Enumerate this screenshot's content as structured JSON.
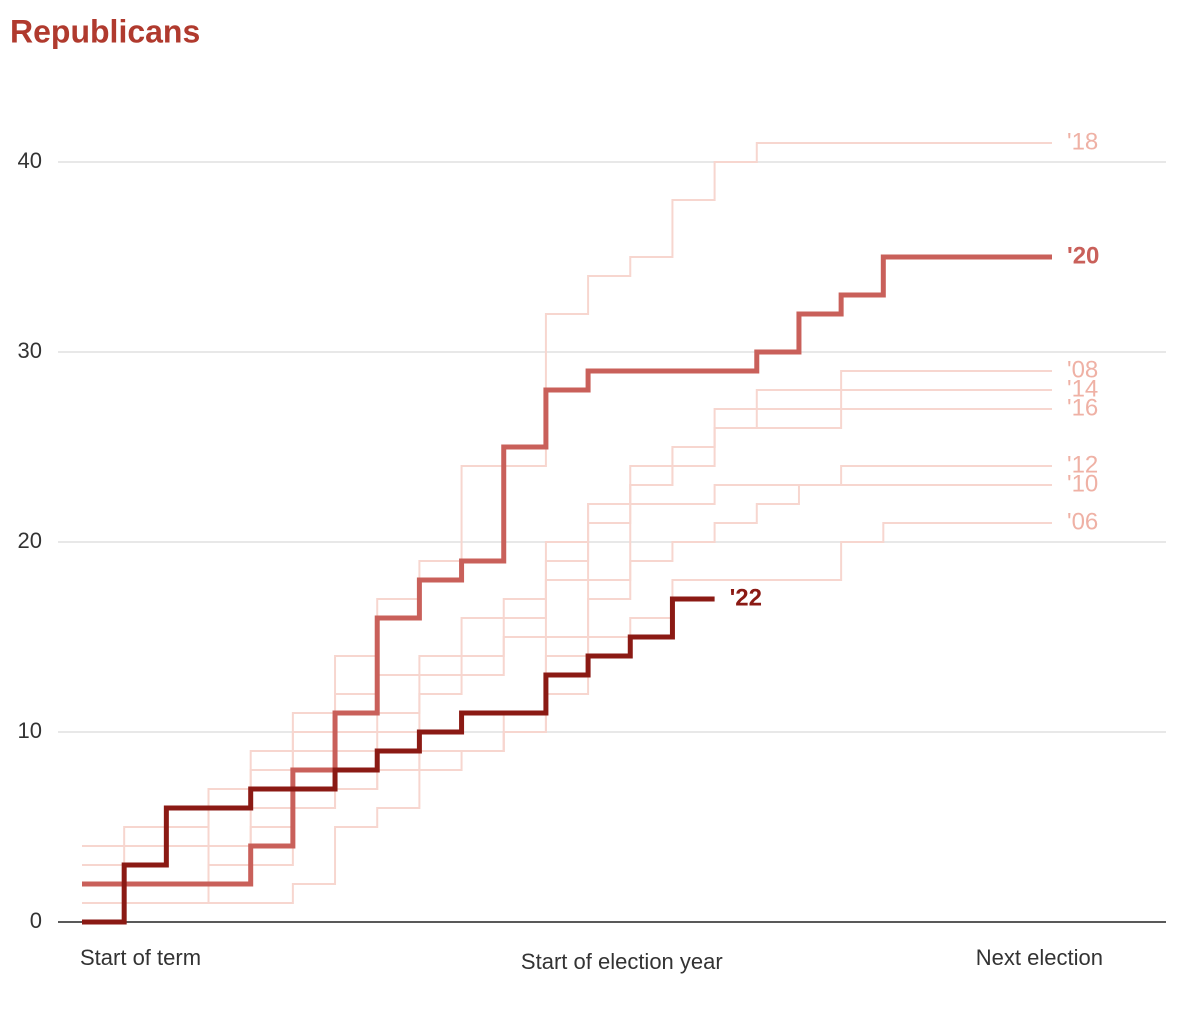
{
  "chart_data": {
    "type": "step",
    "title": "Republicans",
    "x": [
      0,
      1,
      2,
      3,
      4,
      5,
      6,
      7,
      8,
      9,
      10,
      11,
      12,
      13,
      14,
      15,
      16,
      17,
      18,
      19,
      20,
      21,
      22
    ],
    "xlim": [
      0,
      23
    ],
    "xticks": [
      {
        "value": 0,
        "label": "Start of term"
      },
      {
        "value": 12.8,
        "label": "Start of election year"
      },
      {
        "value": 22.7,
        "label": "Next election"
      }
    ],
    "ylim": [
      0,
      43
    ],
    "yticks": [
      0,
      10,
      20,
      30,
      40
    ],
    "grid": true,
    "series": [
      {
        "name": "'18",
        "color": "#f7d6cf",
        "label_color": "#efb1a5",
        "highlight": false,
        "values": [
          3,
          5,
          5,
          7,
          9,
          11,
          14,
          17,
          19,
          24,
          24,
          32,
          34,
          35,
          38,
          40,
          41,
          41,
          41,
          41,
          41,
          41,
          41
        ]
      },
      {
        "name": "'08",
        "color": "#f7d6cf",
        "label_color": "#efb1a5",
        "highlight": false,
        "values": [
          1,
          2,
          2,
          4,
          6,
          8,
          9,
          10,
          12,
          13,
          15,
          19,
          22,
          23,
          25,
          26,
          26,
          26,
          29,
          29,
          29,
          29,
          29
        ]
      },
      {
        "name": "'14",
        "color": "#f7d6cf",
        "label_color": "#efb1a5",
        "highlight": false,
        "values": [
          2,
          3,
          5,
          7,
          8,
          10,
          12,
          13,
          14,
          16,
          17,
          20,
          21,
          24,
          25,
          27,
          28,
          28,
          28,
          28,
          28,
          28,
          28
        ]
      },
      {
        "name": "'16",
        "color": "#f7d6cf",
        "label_color": "#efb1a5",
        "highlight": false,
        "values": [
          4,
          4,
          4,
          6,
          7,
          9,
          10,
          11,
          13,
          14,
          16,
          18,
          22,
          23,
          24,
          26,
          27,
          27,
          27,
          27,
          27,
          27,
          27
        ]
      },
      {
        "name": "'12",
        "color": "#f7d6cf",
        "label_color": "#efb1a5",
        "highlight": false,
        "values": [
          0,
          1,
          1,
          2,
          3,
          6,
          7,
          8,
          9,
          9,
          10,
          14,
          18,
          22,
          22,
          23,
          23,
          23,
          24,
          24,
          24,
          24,
          24
        ]
      },
      {
        "name": "'10",
        "color": "#f7d6cf",
        "label_color": "#efb1a5",
        "highlight": false,
        "values": [
          1,
          1,
          1,
          1,
          1,
          2,
          5,
          6,
          8,
          9,
          10,
          15,
          17,
          19,
          20,
          21,
          22,
          23,
          23,
          23,
          23,
          23,
          23
        ]
      },
      {
        "name": "'06",
        "color": "#f7d6cf",
        "label_color": "#efb1a5",
        "highlight": false,
        "values": [
          2,
          2,
          2,
          3,
          5,
          6,
          7,
          8,
          9,
          9,
          11,
          12,
          15,
          16,
          18,
          18,
          18,
          18,
          20,
          21,
          21,
          21,
          21
        ]
      },
      {
        "name": "'20",
        "color": "#c9605a",
        "label_color": "#c9605a",
        "highlight": true,
        "values": [
          2,
          2,
          2,
          2,
          4,
          8,
          11,
          16,
          18,
          19,
          25,
          28,
          29,
          29,
          29,
          29,
          30,
          32,
          33,
          35,
          35,
          35,
          35
        ]
      },
      {
        "name": "'22",
        "color": "#8b1a14",
        "label_color": "#8b1a14",
        "highlight": true,
        "values": [
          0,
          3,
          6,
          6,
          7,
          7,
          8,
          9,
          10,
          11,
          11,
          13,
          14,
          15,
          17,
          null,
          null,
          null,
          null,
          null,
          null,
          null,
          null
        ]
      }
    ]
  }
}
